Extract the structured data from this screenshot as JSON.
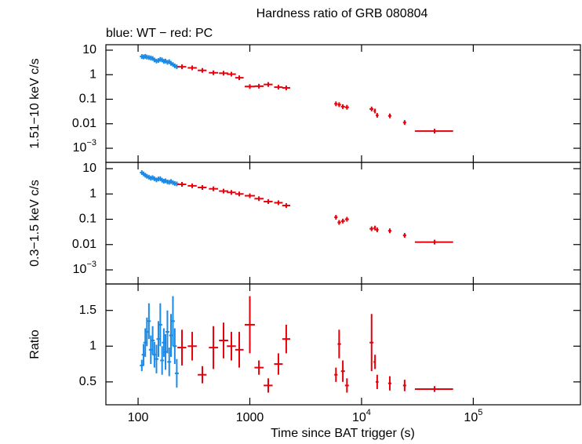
{
  "chart_data": {
    "type": "scatter",
    "title": "Hardness ratio of GRB 080804",
    "subtitle": "blue: WT − red: PC",
    "x_label": "Time since BAT trigger (s)",
    "x_scale": "log",
    "xlim": [
      51.5,
      910000
    ],
    "xticks": [
      100,
      1000,
      {
        "value": 10000,
        "label": "10",
        "exponent": "4"
      },
      {
        "value": 100000,
        "label": "10",
        "exponent": "5"
      }
    ],
    "panels": [
      {
        "y_label": "1.51−10 keV c/s",
        "y_scale": "log",
        "ylim": [
          0.000266,
          16.7
        ],
        "yticks": [
          10,
          1,
          0.1,
          0.01,
          {
            "value": 0.001,
            "label": "10",
            "exponent": "−3"
          }
        ],
        "series": [
          {
            "color": "#1a8ae6",
            "x": [
              108,
              112,
              116,
              120,
              125,
              130,
              135,
              140,
              146,
              152,
              158,
              164,
              170,
              176,
              183,
              190,
              197,
              205,
              213,
              222
            ],
            "values": [
              5.5,
              5.3,
              5.6,
              5.2,
              5.0,
              4.8,
              4.6,
              4.0,
              3.6,
              3.8,
              4.2,
              4.0,
              3.5,
              3.6,
              3.2,
              3.4,
              2.9,
              2.6,
              2.3,
              2.1
            ]
          },
          {
            "color": "#e8000b",
            "x": [
              247,
              305,
              376,
              472,
              582,
              684,
              804,
              1000,
              1206,
              1462,
              1803,
              2118,
              5900,
              6300,
              6800,
              7400,
              12300,
              13200,
              13800,
              17900,
              24300,
              45000
            ],
            "x_low": [
              225,
              278,
              342,
              430,
              530,
              623,
              740,
              900,
              1100,
              1330,
              1650,
              1950,
              5700,
              6100,
              6550,
              7100,
              11800,
              12800,
              13400,
              17300,
              23500,
              30000
            ],
            "x_high": [
              270,
              335,
              410,
              520,
              640,
              750,
              880,
              1110,
              1330,
              1600,
              1970,
              2300,
              6100,
              6550,
              7100,
              7700,
              12800,
              13400,
              14200,
              18500,
              25100,
              66000
            ],
            "values": [
              2.1,
              1.9,
              1.5,
              1.2,
              1.15,
              1.05,
              0.75,
              0.33,
              0.34,
              0.4,
              0.31,
              0.29,
              0.065,
              0.06,
              0.05,
              0.047,
              0.04,
              0.033,
              0.022,
              0.021,
              0.0112,
              0.005
            ]
          }
        ]
      },
      {
        "y_label": "0.3−1.5 keV c/s",
        "y_scale": "log",
        "ylim": [
          0.000277,
          17.7
        ],
        "yticks": [
          10,
          1,
          0.1,
          0.01,
          {
            "value": 0.001,
            "label": "10",
            "exponent": "−3"
          }
        ],
        "series": [
          {
            "color": "#1a8ae6",
            "x": [
              108,
              112,
              116,
              120,
              125,
              130,
              135,
              140,
              146,
              152,
              158,
              164,
              170,
              176,
              183,
              190,
              197,
              205,
              213,
              222
            ],
            "values": [
              7.0,
              6.2,
              5.5,
              5.0,
              4.6,
              4.2,
              4.4,
              4.0,
              3.6,
              3.9,
              4.0,
              3.5,
              3.2,
              3.3,
              3.0,
              2.9,
              3.1,
              2.8,
              2.6,
              2.5
            ]
          },
          {
            "color": "#e8000b",
            "x": [
              247,
              305,
              376,
              472,
              582,
              684,
              804,
              1000,
              1206,
              1462,
              1803,
              2118,
              5900,
              6300,
              6800,
              7400,
              12300,
              13200,
              13800,
              17900,
              24300,
              45000
            ],
            "x_low": [
              225,
              278,
              342,
              430,
              530,
              623,
              740,
              900,
              1100,
              1330,
              1650,
              1950,
              5700,
              6100,
              6550,
              7100,
              11800,
              12800,
              13400,
              17300,
              23500,
              30000
            ],
            "x_high": [
              270,
              335,
              410,
              520,
              640,
              750,
              880,
              1110,
              1330,
              1600,
              1970,
              2300,
              6100,
              6550,
              7100,
              7700,
              12800,
              13400,
              14200,
              18500,
              25100,
              66000
            ],
            "values": [
              2.4,
              2.1,
              1.8,
              1.6,
              1.3,
              1.15,
              1.0,
              0.85,
              0.65,
              0.5,
              0.45,
              0.35,
              0.12,
              0.075,
              0.085,
              0.1,
              0.042,
              0.045,
              0.038,
              0.035,
              0.023,
              0.0125
            ]
          }
        ]
      },
      {
        "y_label": "Ratio",
        "y_scale": "linear",
        "ylim": [
          0.18,
          1.87
        ],
        "yticks": [
          1.5,
          1,
          0.5
        ],
        "series": [
          {
            "color": "#1a8ae6",
            "x": [
              108,
              112,
              116,
              120,
              125,
              130,
              135,
              140,
              146,
              152,
              158,
              164,
              170,
              176,
              183,
              190,
              197,
              205,
              213,
              222
            ],
            "values": [
              0.73,
              0.88,
              1.05,
              1.2,
              1.35,
              0.95,
              1.08,
              0.88,
              0.82,
              1.1,
              1.3,
              0.8,
              1.05,
              0.92,
              1.2,
              0.78,
              1.15,
              1.35,
              1.0,
              0.62
            ],
            "errors": [
              0.08,
              0.15,
              0.2,
              0.2,
              0.25,
              0.2,
              0.2,
              0.18,
              0.2,
              0.25,
              0.3,
              0.2,
              0.2,
              0.25,
              0.3,
              0.2,
              0.3,
              0.35,
              0.25,
              0.2
            ]
          },
          {
            "color": "#e8000b",
            "x": [
              247,
              305,
              376,
              472,
              582,
              684,
              804,
              1000,
              1206,
              1462,
              1803,
              2118,
              5900,
              6300,
              6800,
              7400,
              12300,
              13200,
              13800,
              17900,
              24300,
              45000
            ],
            "x_low": [
              225,
              278,
              342,
              430,
              530,
              623,
              740,
              900,
              1100,
              1330,
              1650,
              1950,
              5700,
              6100,
              6550,
              7100,
              11800,
              12800,
              13400,
              17300,
              23500,
              30000
            ],
            "x_high": [
              270,
              335,
              410,
              520,
              640,
              750,
              880,
              1110,
              1330,
              1600,
              1970,
              2300,
              6100,
              6550,
              7100,
              7700,
              12800,
              13400,
              14200,
              18500,
              25100,
              66000
            ],
            "values": [
              0.98,
              1.0,
              0.6,
              0.98,
              1.08,
              1.0,
              0.95,
              1.3,
              0.7,
              0.45,
              0.75,
              1.1,
              0.6,
              1.03,
              0.65,
              0.45,
              1.05,
              0.78,
              0.5,
              0.48,
              0.45,
              0.4
            ],
            "errors": [
              0.25,
              0.2,
              0.12,
              0.3,
              0.25,
              0.2,
              0.25,
              0.4,
              0.1,
              0.1,
              0.15,
              0.2,
              0.1,
              0.2,
              0.15,
              0.1,
              0.4,
              0.1,
              0.1,
              0.1,
              0.08,
              0.04
            ]
          }
        ]
      }
    ]
  }
}
